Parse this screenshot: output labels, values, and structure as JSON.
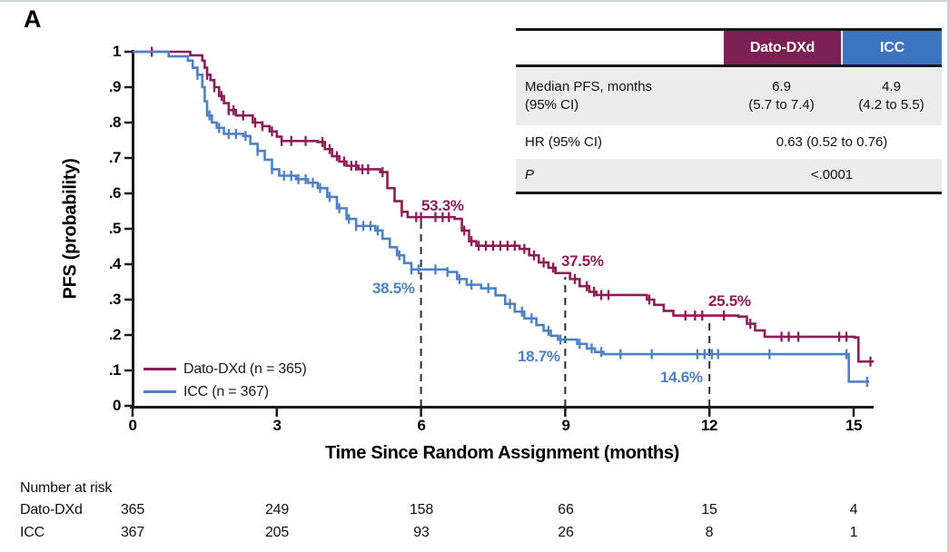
{
  "panel_label": "A",
  "colors": {
    "dato": "#8C1D57",
    "icc": "#4E80C5",
    "dato_header_bg": "#7C2053",
    "icc_header_bg": "#3C75BF",
    "axis": "#1A1A1A",
    "dashed_line": "#2B2B2B",
    "table_shade": "#ECECEC"
  },
  "summary_table": {
    "col_headers": [
      "Dato-DXd",
      "ICC"
    ],
    "rows": [
      {
        "label_line1": "Median PFS, months",
        "label_line2": "(95% CI)",
        "dato_line1": "6.9",
        "dato_line2": "(5.7 to 7.4)",
        "icc_line1": "4.9",
        "icc_line2": "(4.2 to 5.5)"
      },
      {
        "label": "HR (95% CI)",
        "merged": "0.63 (0.52 to 0.76)"
      },
      {
        "label": "P",
        "merged": "<.0001"
      }
    ]
  },
  "y_axis": {
    "label": "PFS (probability)",
    "ticks": [
      "1",
      ".9",
      ".8",
      ".7",
      ".6",
      ".5",
      ".4",
      ".3",
      ".2",
      ".1",
      "0"
    ]
  },
  "x_axis": {
    "label": "Time Since Random Assignment (months)",
    "ticks": [
      "0",
      "3",
      "6",
      "9",
      "12",
      "15"
    ]
  },
  "legend": [
    {
      "label": "Dato-DXd (n = 365)",
      "series": "dato"
    },
    {
      "label": "ICC (n = 367)",
      "series": "icc"
    }
  ],
  "annotations": [
    {
      "label": "53.3%",
      "series": "dato",
      "t": 6
    },
    {
      "label": "38.5%",
      "series": "icc",
      "t": 6
    },
    {
      "label": "37.5%",
      "series": "dato",
      "t": 9
    },
    {
      "label": "18.7%",
      "series": "icc",
      "t": 9
    },
    {
      "label": "25.5%",
      "series": "dato",
      "t": 12
    },
    {
      "label": "14.6%",
      "series": "icc",
      "t": 12
    }
  ],
  "risk_table": {
    "title": "Number at risk",
    "rows": [
      {
        "label": "Dato-DXd",
        "counts": [
          "365",
          "249",
          "158",
          "66",
          "15",
          "4"
        ]
      },
      {
        "label": "ICC",
        "counts": [
          "367",
          "205",
          "93",
          "26",
          "8",
          "1"
        ]
      }
    ]
  },
  "chart_data": {
    "type": "line",
    "subtype": "kaplan-meier-step",
    "title": "",
    "xlabel": "Time Since Random Assignment (months)",
    "ylabel": "PFS (probability)",
    "xlim": [
      0,
      15.6
    ],
    "ylim": [
      0,
      1
    ],
    "x_ticks": [
      0,
      3,
      6,
      9,
      12,
      15
    ],
    "y_ticks": [
      0,
      0.1,
      0.2,
      0.3,
      0.4,
      0.5,
      0.6,
      0.7,
      0.8,
      0.9,
      1
    ],
    "grid": false,
    "legend_position": "lower-left",
    "dashed_lines": [
      {
        "t": 6,
        "top_p": 0.525
      },
      {
        "t": 9,
        "top_p": 0.364
      },
      {
        "t": 12,
        "top_p": 0.248
      }
    ],
    "landmark_pfs": [
      {
        "t": 6,
        "dato_dxd": 0.533,
        "icc": 0.385
      },
      {
        "t": 9,
        "dato_dxd": 0.375,
        "icc": 0.187
      },
      {
        "t": 12,
        "dato_dxd": 0.255,
        "icc": 0.146
      }
    ],
    "series": [
      {
        "name": "Dato-DXd",
        "n": 365,
        "color_key": "dato",
        "steps": [
          [
            0,
            1.0
          ],
          [
            1.2,
            0.99
          ],
          [
            1.45,
            0.975
          ],
          [
            1.5,
            0.955
          ],
          [
            1.55,
            0.935
          ],
          [
            1.62,
            0.92
          ],
          [
            1.7,
            0.9
          ],
          [
            1.8,
            0.875
          ],
          [
            1.9,
            0.855
          ],
          [
            2.0,
            0.835
          ],
          [
            2.15,
            0.82
          ],
          [
            2.5,
            0.8
          ],
          [
            2.7,
            0.79
          ],
          [
            2.85,
            0.775
          ],
          [
            3.0,
            0.76
          ],
          [
            3.1,
            0.748
          ],
          [
            3.85,
            0.745
          ],
          [
            4.0,
            0.725
          ],
          [
            4.15,
            0.705
          ],
          [
            4.3,
            0.69
          ],
          [
            4.45,
            0.678
          ],
          [
            4.7,
            0.668
          ],
          [
            5.15,
            0.66
          ],
          [
            5.3,
            0.615
          ],
          [
            5.45,
            0.578
          ],
          [
            5.6,
            0.548
          ],
          [
            5.72,
            0.533
          ],
          [
            6.7,
            0.528
          ],
          [
            6.85,
            0.495
          ],
          [
            7.0,
            0.465
          ],
          [
            7.15,
            0.452
          ],
          [
            8.05,
            0.443
          ],
          [
            8.25,
            0.425
          ],
          [
            8.45,
            0.405
          ],
          [
            8.65,
            0.39
          ],
          [
            8.8,
            0.375
          ],
          [
            9.1,
            0.358
          ],
          [
            9.3,
            0.338
          ],
          [
            9.5,
            0.322
          ],
          [
            9.65,
            0.313
          ],
          [
            10.7,
            0.3
          ],
          [
            10.85,
            0.285
          ],
          [
            11.05,
            0.268
          ],
          [
            11.25,
            0.255
          ],
          [
            12.6,
            0.252
          ],
          [
            12.78,
            0.232
          ],
          [
            12.95,
            0.213
          ],
          [
            13.15,
            0.195
          ],
          [
            15.02,
            0.193
          ],
          [
            15.1,
            0.125
          ],
          [
            15.42,
            0.125
          ]
        ],
        "censor_times": [
          0.4,
          1.55,
          1.7,
          1.85,
          2.0,
          2.1,
          2.3,
          2.55,
          2.7,
          2.9,
          3.1,
          3.3,
          3.6,
          3.95,
          4.1,
          4.25,
          4.4,
          4.55,
          4.65,
          4.78,
          4.9,
          5.2,
          5.6,
          5.9,
          6.0,
          6.3,
          6.45,
          6.58,
          6.9,
          7.05,
          7.2,
          7.35,
          7.5,
          7.65,
          7.8,
          7.95,
          8.15,
          8.35,
          8.55,
          8.75,
          9.2,
          9.45,
          9.6,
          9.75,
          9.9,
          10.75,
          11.5,
          11.7,
          11.85,
          12.3,
          12.85,
          13.5,
          13.65,
          13.85,
          14.7,
          14.85,
          15.35
        ]
      },
      {
        "name": "ICC",
        "n": 367,
        "color_key": "icc",
        "steps": [
          [
            0,
            1.0
          ],
          [
            0.75,
            0.987
          ],
          [
            1.15,
            0.975
          ],
          [
            1.25,
            0.955
          ],
          [
            1.35,
            0.935
          ],
          [
            1.45,
            0.9
          ],
          [
            1.5,
            0.86
          ],
          [
            1.55,
            0.82
          ],
          [
            1.65,
            0.8
          ],
          [
            1.75,
            0.785
          ],
          [
            1.9,
            0.768
          ],
          [
            2.3,
            0.762
          ],
          [
            2.45,
            0.74
          ],
          [
            2.6,
            0.72
          ],
          [
            2.75,
            0.695
          ],
          [
            2.9,
            0.668
          ],
          [
            3.05,
            0.65
          ],
          [
            3.4,
            0.64
          ],
          [
            3.65,
            0.63
          ],
          [
            3.85,
            0.615
          ],
          [
            4.05,
            0.59
          ],
          [
            4.25,
            0.558
          ],
          [
            4.45,
            0.528
          ],
          [
            4.65,
            0.508
          ],
          [
            5.05,
            0.495
          ],
          [
            5.2,
            0.472
          ],
          [
            5.35,
            0.448
          ],
          [
            5.5,
            0.425
          ],
          [
            5.65,
            0.403
          ],
          [
            5.8,
            0.385
          ],
          [
            6.55,
            0.378
          ],
          [
            6.75,
            0.358
          ],
          [
            6.95,
            0.342
          ],
          [
            7.25,
            0.332
          ],
          [
            7.55,
            0.312
          ],
          [
            7.75,
            0.288
          ],
          [
            7.95,
            0.266
          ],
          [
            8.15,
            0.247
          ],
          [
            8.4,
            0.228
          ],
          [
            8.55,
            0.212
          ],
          [
            8.7,
            0.198
          ],
          [
            8.85,
            0.187
          ],
          [
            9.25,
            0.175
          ],
          [
            9.45,
            0.162
          ],
          [
            9.62,
            0.152
          ],
          [
            9.8,
            0.146
          ],
          [
            14.82,
            0.146
          ],
          [
            14.9,
            0.068
          ],
          [
            15.32,
            0.068
          ]
        ],
        "censor_times": [
          1.35,
          1.6,
          1.8,
          2.0,
          2.15,
          2.35,
          2.6,
          2.9,
          3.15,
          3.3,
          3.45,
          3.6,
          3.75,
          3.9,
          4.1,
          4.3,
          4.5,
          4.65,
          4.8,
          4.95,
          5.1,
          5.55,
          5.8,
          5.95,
          6.3,
          6.55,
          6.8,
          7.05,
          7.4,
          7.85,
          8.1,
          8.3,
          8.65,
          8.9,
          9.3,
          9.55,
          9.75,
          10.15,
          10.8,
          11.75,
          11.9,
          12.05,
          12.18,
          13.25,
          14.85,
          15.28
        ]
      }
    ],
    "hr_95ci": "0.63 (0.52 to 0.76)",
    "p_value": "<.0001",
    "median_pfs_months": {
      "dato_dxd": "6.9 (5.7 to 7.4)",
      "icc": "4.9 (4.2 to 5.5)"
    }
  }
}
